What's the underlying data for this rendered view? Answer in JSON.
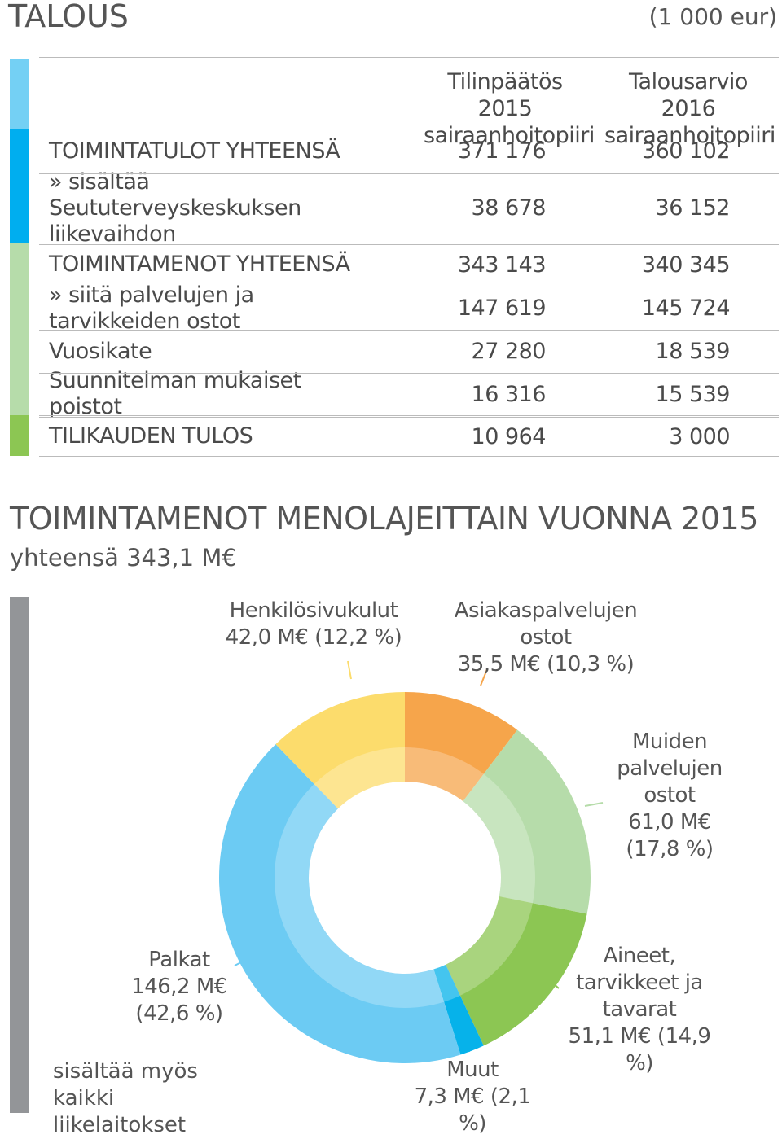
{
  "header": {
    "title": "TALOUS",
    "unit": "(1 000 eur)"
  },
  "table": {
    "columns": [
      "Tilinpäätös 2015 sairaanhoitopiiri",
      "Talousarvio 2016 sairaanhoitopiiri"
    ],
    "rows": [
      [
        "TOIMINTATULOT YHTEENSÄ",
        "371 176",
        "360 102"
      ],
      [
        "» sisältää Seututerveyskeskuksen liikevaihdon",
        "38 678",
        "36 152"
      ],
      [
        "TOIMINTAMENOT YHTEENSÄ",
        "343 143",
        "340 345"
      ],
      [
        "» siitä palvelujen ja tarvikkeiden ostot",
        "147 619",
        "145 724"
      ],
      [
        "Vuosikate",
        "27 280",
        "18 539"
      ],
      [
        "Suunnitelman mukaiset poistot",
        "16 316",
        "15 539"
      ],
      [
        "TILIKAUDEN TULOS",
        "10 964",
        "3 000"
      ]
    ]
  },
  "chart_data": {
    "type": "donut",
    "title": "TOIMINTAMENOT MENOLAJEITTAIN VUONNA 2015",
    "subtitle": "yhteensä 343,1 M€",
    "note": "sisältää myös kaikki liikelaitokset",
    "categories": [
      "Asiakaspalvelujen ostot",
      "Muiden palvelujen ostot",
      "Aineet, tarvikkeet ja tavarat",
      "Muut",
      "Palkat",
      "Henkilösivukulut"
    ],
    "values": [
      35.5,
      61.0,
      51.1,
      7.3,
      146.2,
      42.0
    ],
    "value_labels": [
      "35,5 M€ (10,3 %)",
      "61,0 M€ (17,8 %)",
      "51,1 M€ (14,9 %)",
      "7,3 M€ (2,1 %)",
      "146,2 M€ (42,6 %)",
      "42,0 M€ (12,2 %)"
    ],
    "colors": [
      "#f6a54b",
      "#b6dcaa",
      "#8cc653",
      "#06b2ea",
      "#6ccbf3",
      "#fcdc6c"
    ]
  }
}
